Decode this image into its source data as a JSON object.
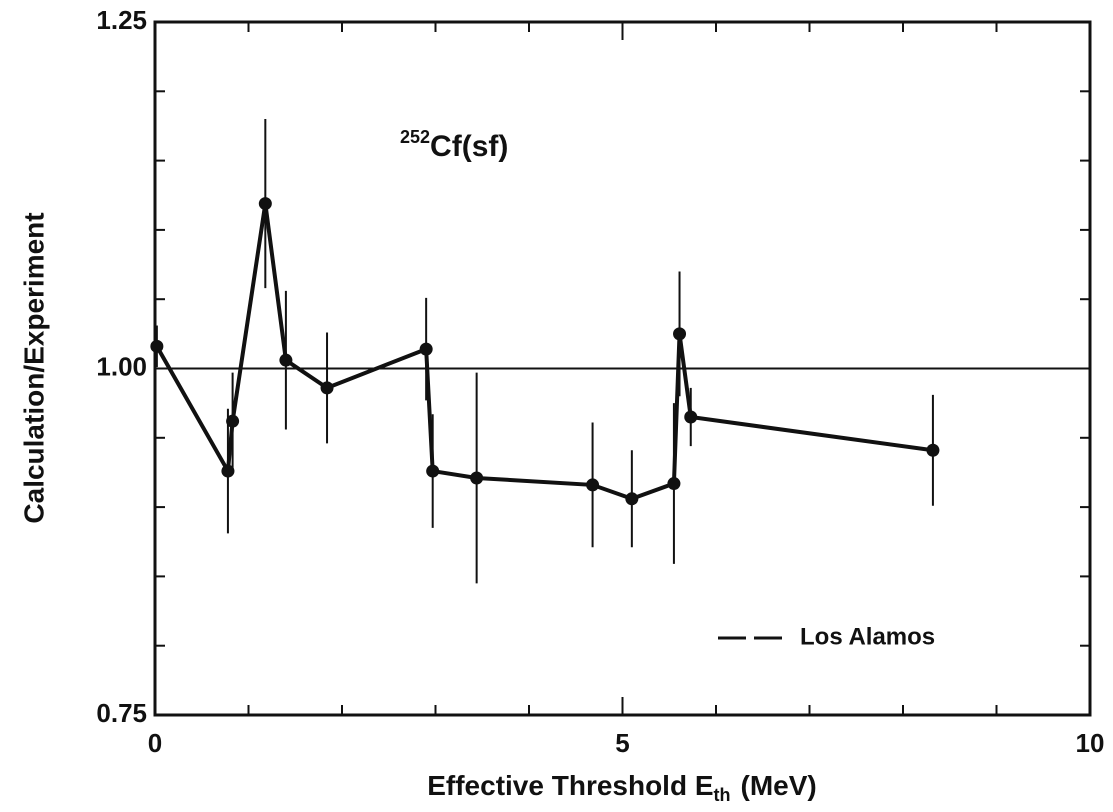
{
  "chart_data": {
    "type": "line",
    "annotation": {
      "mass": "252",
      "text": "Cf(sf)"
    },
    "xlabel": {
      "text": "Effective Threshold E",
      "sub": "th",
      "tail": "(MeV)"
    },
    "ylabel": "Calculation/Experiment",
    "x": [
      0.02,
      0.78,
      0.83,
      1.18,
      1.4,
      1.84,
      2.9,
      2.97,
      3.44,
      4.68,
      5.1,
      5.55,
      5.61,
      5.73,
      8.32
    ],
    "series": [
      {
        "name": "Los Alamos",
        "color": "#111111",
        "values": [
          1.016,
          0.926,
          0.962,
          1.119,
          1.006,
          0.986,
          1.014,
          0.926,
          0.921,
          0.916,
          0.906,
          0.917,
          1.025,
          0.965,
          0.941
        ],
        "errors": [
          0.015,
          0.045,
          0.035,
          0.061,
          0.05,
          0.04,
          0.037,
          0.041,
          0.076,
          0.045,
          0.035,
          0.058,
          0.045,
          0.021,
          0.04
        ]
      }
    ],
    "reference_line": 1.0,
    "xlim": [
      0,
      10
    ],
    "xticks": [
      0,
      5,
      10
    ],
    "xminorticks": [
      1,
      2,
      3,
      4,
      6,
      7,
      8,
      9
    ],
    "ylim": [
      0.75,
      1.25
    ],
    "yticks": [
      0.75,
      {
        "value": 1.0,
        "label": "1.00"
      },
      1.25
    ],
    "yminorticks": [
      0.8,
      0.85,
      0.9,
      0.95,
      1.05,
      1.1,
      1.15,
      1.2
    ],
    "legend": "lower right"
  }
}
